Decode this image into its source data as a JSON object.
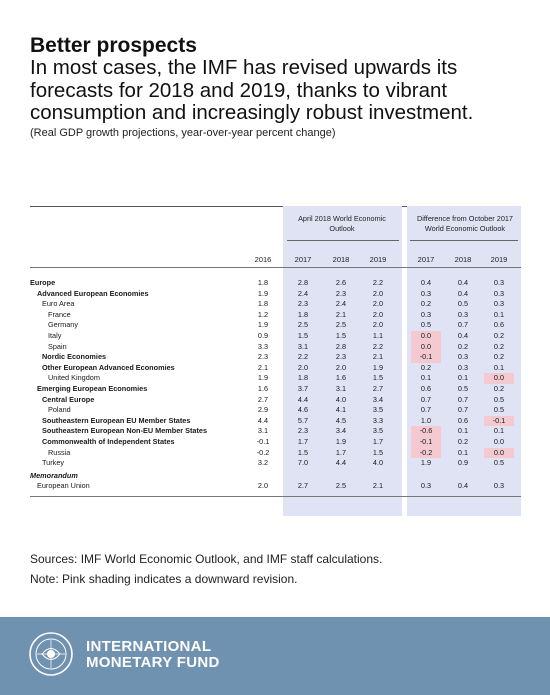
{
  "header": {
    "title": "Better prospects",
    "subtitle": "In most cases, the IMF has revised upwards its forecasts for 2018 and 2019, thanks to vibrant consumption and increasingly robust investment.",
    "note": "(Real GDP growth projections, year-over-year percent change)"
  },
  "table": {
    "group1_title": "April 2018 World Economic Outlook",
    "group2_title": "Difference from October 2017 World Economic Outlook",
    "years": [
      "2016",
      "2017",
      "2018",
      "2019",
      "2017",
      "2018",
      "2019"
    ],
    "negative_color": "#f4c9cf",
    "shade_color": "#dfe3f4",
    "rows": [
      {
        "label": "Europe",
        "style": "b",
        "indent": 0,
        "v": [
          "1.8",
          "2.8",
          "2.6",
          "2.2",
          "0.4",
          "0.4",
          "0.3"
        ],
        "neg": []
      },
      {
        "label": "Advanced European Economies",
        "style": "b",
        "indent": 1,
        "v": [
          "1.9",
          "2.4",
          "2.3",
          "2.0",
          "0.3",
          "0.4",
          "0.3"
        ],
        "neg": []
      },
      {
        "label": "Euro Area",
        "style": "",
        "indent": 2,
        "v": [
          "1.8",
          "2.3",
          "2.4",
          "2.0",
          "0.2",
          "0.5",
          "0.3"
        ],
        "neg": []
      },
      {
        "label": "France",
        "style": "",
        "indent": 3,
        "v": [
          "1.2",
          "1.8",
          "2.1",
          "2.0",
          "0.3",
          "0.3",
          "0.1"
        ],
        "neg": []
      },
      {
        "label": "Germany",
        "style": "",
        "indent": 3,
        "v": [
          "1.9",
          "2.5",
          "2.5",
          "2.0",
          "0.5",
          "0.7",
          "0.6"
        ],
        "neg": []
      },
      {
        "label": "Italy",
        "style": "",
        "indent": 3,
        "v": [
          "0.9",
          "1.5",
          "1.5",
          "1.1",
          "0.0",
          "0.4",
          "0.2"
        ],
        "neg": [
          4
        ]
      },
      {
        "label": "Spain",
        "style": "",
        "indent": 3,
        "v": [
          "3.3",
          "3.1",
          "2.8",
          "2.2",
          "0.0",
          "0.2",
          "0.2"
        ],
        "neg": [
          4
        ]
      },
      {
        "label": "Nordic Economies",
        "style": "b",
        "indent": 2,
        "v": [
          "2.3",
          "2.2",
          "2.3",
          "2.1",
          "-0.1",
          "0.3",
          "0.2"
        ],
        "neg": [
          4
        ]
      },
      {
        "label": "Other European Advanced Economies",
        "style": "b",
        "indent": 2,
        "v": [
          "2.1",
          "2.0",
          "2.0",
          "1.9",
          "0.2",
          "0.3",
          "0.1"
        ],
        "neg": []
      },
      {
        "label": "United Kingdom",
        "style": "",
        "indent": 3,
        "v": [
          "1.9",
          "1.8",
          "1.6",
          "1.5",
          "0.1",
          "0.1",
          "0.0"
        ],
        "neg": [
          6
        ]
      },
      {
        "label": "Emerging European Economies",
        "style": "b",
        "indent": 1,
        "v": [
          "1.6",
          "3.7",
          "3.1",
          "2.7",
          "0.6",
          "0.5",
          "0.2"
        ],
        "neg": []
      },
      {
        "label": "Central Europe",
        "style": "b",
        "indent": 2,
        "v": [
          "2.7",
          "4.4",
          "4.0",
          "3.4",
          "0.7",
          "0.7",
          "0.5"
        ],
        "neg": []
      },
      {
        "label": "Poland",
        "style": "",
        "indent": 3,
        "v": [
          "2.9",
          "4.6",
          "4.1",
          "3.5",
          "0.7",
          "0.7",
          "0.5"
        ],
        "neg": []
      },
      {
        "label": "Southeastern European EU Member States",
        "style": "b",
        "indent": 2,
        "v": [
          "4.4",
          "5.7",
          "4.5",
          "3.3",
          "1.0",
          "0.6",
          "-0.1"
        ],
        "neg": [
          6
        ]
      },
      {
        "label": "Southeastern European Non-EU Member States",
        "style": "b",
        "indent": 2,
        "v": [
          "3.1",
          "2.3",
          "3.4",
          "3.5",
          "-0.6",
          "0.1",
          "0.1"
        ],
        "neg": [
          4
        ]
      },
      {
        "label": "Commonwealth of Independent States",
        "style": "b",
        "indent": 2,
        "v": [
          "-0.1",
          "1.7",
          "1.9",
          "1.7",
          "-0.1",
          "0.2",
          "0.0"
        ],
        "neg": [
          4
        ]
      },
      {
        "label": "Russia",
        "style": "",
        "indent": 3,
        "v": [
          "-0.2",
          "1.5",
          "1.7",
          "1.5",
          "-0.2",
          "0.1",
          "0.0"
        ],
        "neg": [
          4,
          6
        ]
      },
      {
        "label": "Turkey",
        "style": "",
        "indent": 2,
        "v": [
          "3.2",
          "7.0",
          "4.4",
          "4.0",
          "1.9",
          "0.9",
          "0.5"
        ],
        "neg": []
      },
      {
        "label": "Memorandum",
        "style": "i",
        "indent": 0,
        "v": [
          "",
          "",
          "",
          "",
          "",
          "",
          ""
        ],
        "neg": []
      },
      {
        "label": "European Union",
        "style": "",
        "indent": 1,
        "v": [
          "2.0",
          "2.7",
          "2.5",
          "2.1",
          "0.3",
          "0.4",
          "0.3"
        ],
        "neg": []
      }
    ]
  },
  "footnotes": {
    "sources": "Sources: IMF World Economic Outlook, and IMF staff calculations.",
    "note": "Note: Pink shading indicates a downward revision."
  },
  "footer": {
    "org_line1": "INTERNATIONAL",
    "org_line2": "MONETARY FUND",
    "background": "#7092b1",
    "seal_icon": "imf-seal-icon"
  }
}
